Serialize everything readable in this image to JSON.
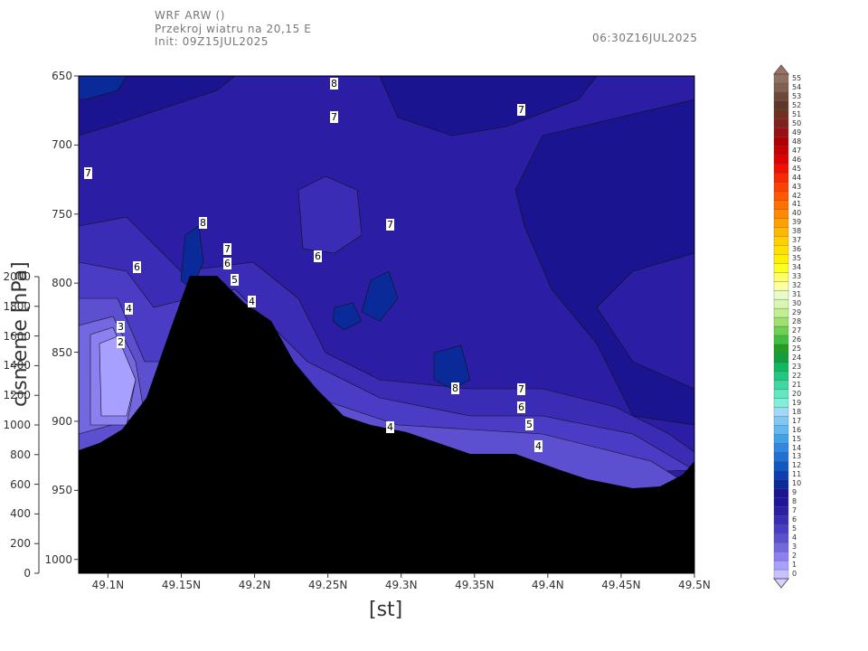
{
  "header": {
    "line1": "WRF ARW ()",
    "line2": "Przekroj wiatru na 20,15 E",
    "line3": "Init: 09Z15JUL2025",
    "valid_time": "06:30Z16JUL2025"
  },
  "chart_data": {
    "type": "heatmap",
    "title": "",
    "xlabel": "[st]",
    "ylabel_left": "cisnienie [hPa]",
    "x_ticks": [
      "49.1N",
      "49.15N",
      "49.2N",
      "49.25N",
      "49.3N",
      "49.35N",
      "49.4N",
      "49.45N",
      "49.5N"
    ],
    "x_range": [
      49.08,
      49.5
    ],
    "y_ticks_pressure": [
      "650",
      "700",
      "750",
      "800",
      "850",
      "900",
      "950",
      "1000"
    ],
    "y_range_pressure": [
      650,
      1010
    ],
    "y_ticks_height": [
      "2000",
      "1800",
      "1600",
      "1400",
      "1200",
      "1000",
      "800",
      "600",
      "400",
      "200",
      "0"
    ],
    "colorbar_levels": [
      "0",
      "1",
      "2",
      "3",
      "4",
      "5",
      "6",
      "7",
      "8",
      "9",
      "10",
      "11",
      "12",
      "13",
      "14",
      "15",
      "16",
      "17",
      "18",
      "19",
      "20",
      "21",
      "22",
      "23",
      "24",
      "25",
      "26",
      "27",
      "28",
      "29",
      "30",
      "31",
      "32",
      "33",
      "34",
      "35",
      "36",
      "37",
      "38",
      "39",
      "40",
      "41",
      "42",
      "43",
      "44",
      "45",
      "46",
      "47",
      "48",
      "49",
      "50",
      "51",
      "52",
      "53",
      "54",
      "55"
    ],
    "colorbar_colors": [
      "#c8c0ff",
      "#a8a0ff",
      "#8c80f0",
      "#7468e0",
      "#5c50d0",
      "#4a3cc4",
      "#3a2cb4",
      "#2c1ea4",
      "#20159a",
      "#1a1490",
      "#0a2a9a",
      "#0c40b0",
      "#1058c4",
      "#2070d4",
      "#3088e0",
      "#40a0e8",
      "#60b8f0",
      "#80c8f4",
      "#a0d8f8",
      "#80f0d8",
      "#60e8c0",
      "#40d8a0",
      "#20c880",
      "#10b860",
      "#10a040",
      "#20a020",
      "#40c040",
      "#70d050",
      "#a0e070",
      "#c0f090",
      "#d8f8b0",
      "#e8fcc8",
      "#ffffa0",
      "#ffff60",
      "#ffff20",
      "#fff000",
      "#ffe000",
      "#ffd000",
      "#ffb800",
      "#ffa000",
      "#ff8800",
      "#ff7000",
      "#ff5800",
      "#ff4000",
      "#f82800",
      "#f01000",
      "#e00000",
      "#c80000",
      "#b00000",
      "#981010",
      "#802020",
      "#703020",
      "#603828",
      "#704838",
      "#806050",
      "#907060"
    ],
    "contour_labels": [
      "8",
      "7",
      "7",
      "7",
      "6",
      "7",
      "8",
      "6",
      "6",
      "7",
      "5",
      "4",
      "4",
      "3",
      "2",
      "8",
      "7",
      "6",
      "5",
      "4",
      "4"
    ]
  }
}
